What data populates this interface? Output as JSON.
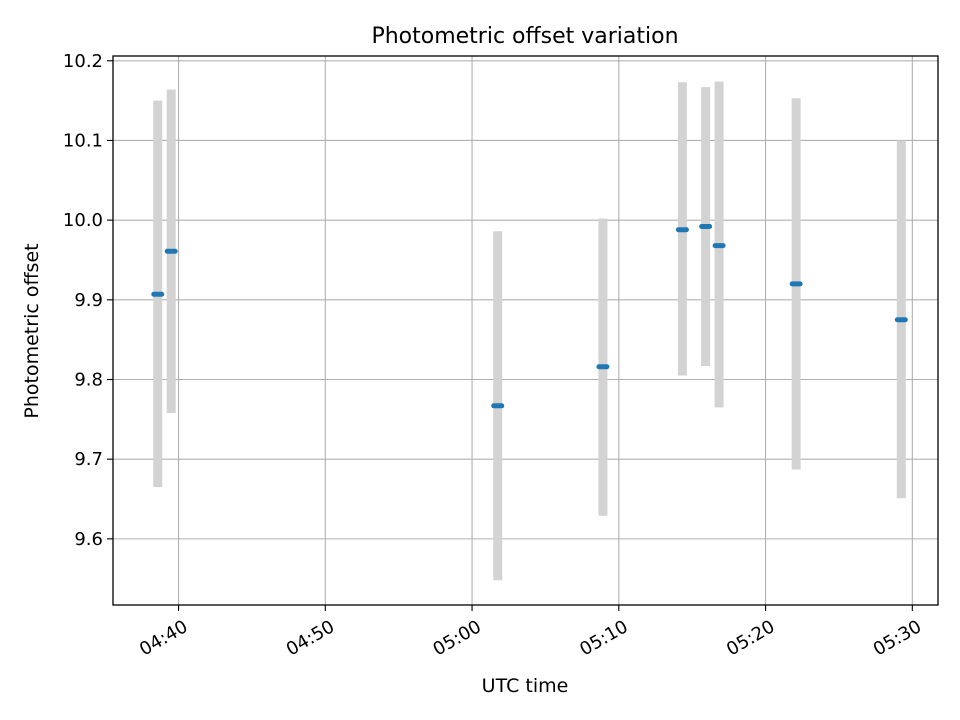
{
  "chart_data": {
    "type": "scatter",
    "title": "Photometric offset variation",
    "xlabel": "UTC time",
    "ylabel": "Photometric offset",
    "x_axis_type": "time",
    "xlim": [
      "04:35:32",
      "05:31:45"
    ],
    "ylim": [
      9.517,
      10.206
    ],
    "x_ticks": [
      "04:40",
      "04:50",
      "05:00",
      "05:10",
      "05:20",
      "05:30"
    ],
    "y_ticks": [
      9.6,
      9.7,
      9.8,
      9.9,
      10.0,
      10.1,
      10.2
    ],
    "y_tick_labels": [
      "9.6",
      "9.7",
      "9.8",
      "9.9",
      "10.0",
      "10.1",
      "10.2"
    ],
    "grid": true,
    "marker_color": "#1f77b4",
    "errorbar_color": "#d3d3d3",
    "points": [
      {
        "x": "04:38:35",
        "y": 9.907,
        "low": 9.665,
        "high": 10.15
      },
      {
        "x": "04:39:30",
        "y": 9.961,
        "low": 9.758,
        "high": 10.164
      },
      {
        "x": "05:01:45",
        "y": 9.767,
        "low": 9.548,
        "high": 9.986
      },
      {
        "x": "05:08:55",
        "y": 9.816,
        "low": 9.629,
        "high": 10.002
      },
      {
        "x": "05:14:20",
        "y": 9.988,
        "low": 9.805,
        "high": 10.173
      },
      {
        "x": "05:15:55",
        "y": 9.992,
        "low": 9.817,
        "high": 10.167
      },
      {
        "x": "05:16:50",
        "y": 9.968,
        "low": 9.765,
        "high": 10.174
      },
      {
        "x": "05:22:05",
        "y": 9.92,
        "low": 9.687,
        "high": 10.153
      },
      {
        "x": "05:29:15",
        "y": 9.875,
        "low": 9.651,
        "high": 10.1
      }
    ]
  }
}
